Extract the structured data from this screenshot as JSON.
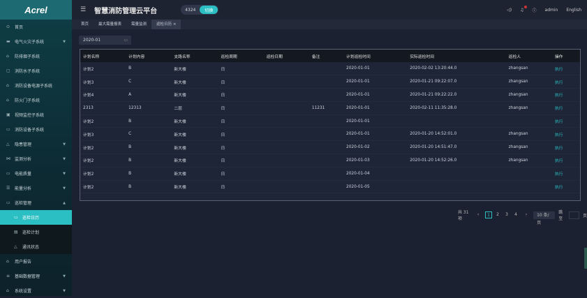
{
  "logo": "Acrel",
  "header": {
    "title": "智慧消防管理云平台",
    "count": "4324",
    "switch_label": "切换",
    "user": "admin",
    "language": "English"
  },
  "sidebar": {
    "items": [
      {
        "label": "首页",
        "icon": "home-icon"
      },
      {
        "label": "电气火灾子系统",
        "icon": "fire-icon",
        "chevron": true
      },
      {
        "label": "防排烟子系统",
        "icon": "lock-icon"
      },
      {
        "label": "消防水子系统",
        "icon": "water-icon"
      },
      {
        "label": "消防设备电源子系统",
        "icon": "power-icon"
      },
      {
        "label": "防火门子系统",
        "icon": "door-icon"
      },
      {
        "label": "视频监控子系统",
        "icon": "video-icon"
      },
      {
        "label": "消防设备子系统",
        "icon": "device-icon"
      },
      {
        "label": "隐患管理",
        "icon": "warning-icon",
        "chevron": true
      },
      {
        "label": "监测分析",
        "icon": "chart-icon",
        "chevron": true
      },
      {
        "label": "电能质量",
        "icon": "power-quality-icon",
        "chevron": true
      },
      {
        "label": "能量分析",
        "icon": "energy-icon",
        "chevron": true
      },
      {
        "label": "巡检管理",
        "icon": "inspection-icon",
        "chevron": true,
        "open": true
      }
    ],
    "sub_items": [
      {
        "label": "巡检日历",
        "icon": "calendar-icon",
        "active": true
      },
      {
        "label": "巡检计划",
        "icon": "plan-icon"
      },
      {
        "label": "通讯状态",
        "icon": "signal-icon"
      }
    ],
    "bottom_items": [
      {
        "label": "用户报告",
        "icon": "report-icon"
      },
      {
        "label": "基础数据管理",
        "icon": "database-icon",
        "chevron": true
      },
      {
        "label": "系统设置",
        "icon": "settings-icon",
        "chevron": true
      }
    ]
  },
  "tabs": [
    "首页",
    "最大需量报表",
    "需量监测",
    "巡检日历"
  ],
  "filter": {
    "month": "2020-01"
  },
  "table": {
    "columns": [
      "计划名称",
      "计划内容",
      "支路名称",
      "巡检周期",
      "巡检日期",
      "备注",
      "计划巡检时间",
      "实际巡检时间",
      "巡检人",
      "操作"
    ],
    "rows": [
      [
        "计划2",
        "B",
        "新大楼",
        "日",
        "",
        "",
        "2020-01-01",
        "2020-02-02 13:20:44.0",
        "zhangsan",
        "执行"
      ],
      [
        "计划3",
        "C",
        "新大楼",
        "日",
        "",
        "",
        "2020-01-01",
        "2020-01-21 09:22:07.0",
        "zhangsan",
        "执行"
      ],
      [
        "计划4",
        "A",
        "新大楼",
        "日",
        "",
        "",
        "2020-01-01",
        "2020-01-21 09:22:22.0",
        "zhangsan",
        "执行"
      ],
      [
        "2313",
        "12313",
        "二层",
        "日",
        "",
        "11231",
        "2020-01-01",
        "2020-02-11 11:35:28.0",
        "zhangsan",
        "执行"
      ],
      [
        "计划2",
        "B",
        "新大楼",
        "日",
        "",
        "",
        "2020-01-01",
        "",
        "",
        "执行"
      ],
      [
        "计划3",
        "C",
        "新大楼",
        "日",
        "",
        "",
        "2020-01-01",
        "2020-01-20 14:52:01.0",
        "zhangsan",
        "执行"
      ],
      [
        "计划2",
        "B",
        "新大楼",
        "日",
        "",
        "",
        "2020-01-02",
        "2020-01-20 14:51:47.0",
        "zhangsan",
        "执行"
      ],
      [
        "计划2",
        "B",
        "新大楼",
        "日",
        "",
        "",
        "2020-01-03",
        "2020-01-20 14:52:26.0",
        "zhangsan",
        "执行"
      ],
      [
        "计划2",
        "B",
        "新大楼",
        "日",
        "",
        "",
        "2020-01-04",
        "",
        "",
        "执行"
      ],
      [
        "计划2",
        "B",
        "新大楼",
        "日",
        "",
        "",
        "2020-01-05",
        "",
        "",
        "执行"
      ]
    ]
  },
  "pagination": {
    "total": "共 31 项",
    "pages": [
      "1",
      "2",
      "3",
      "4"
    ],
    "current": "1",
    "page_size": "10 条/页",
    "goto": "跳至",
    "page_unit": "页"
  }
}
